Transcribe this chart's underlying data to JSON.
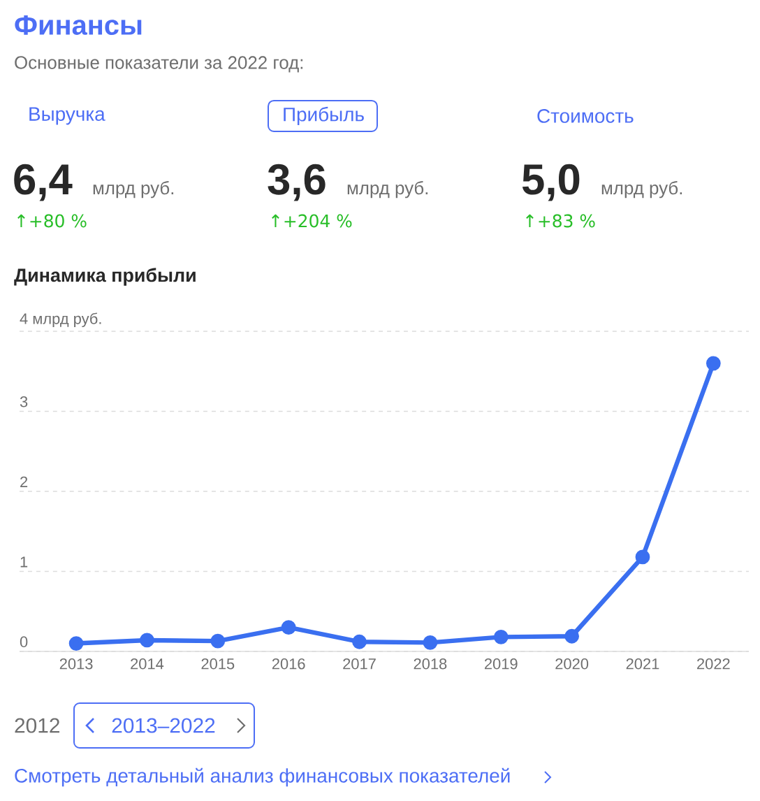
{
  "chart_data": {
    "type": "line",
    "title": "Финансы",
    "subtitle": "Основные показатели за 2022 год:",
    "categories": [
      "2013",
      "2014",
      "2015",
      "2016",
      "2017",
      "2018",
      "2019",
      "2020",
      "2021",
      "2022"
    ],
    "series": [
      {
        "color": "#3a6ff0",
        "values": [
          0.1,
          0.14,
          0.13,
          0.3,
          0.12,
          0.11,
          0.18,
          0.19,
          1.18,
          3.6
        ]
      }
    ],
    "ylim": [
      0,
      4
    ],
    "yticks": [
      0,
      1,
      2,
      3,
      {
        "value": 4,
        "label": "4 млрд руб."
      }
    ],
    "grid": "y",
    "marker": "circle",
    "line_style": "solid",
    "annotations": [
      "Выручка",
      "Прибыль",
      "Стоимость",
      "6,4",
      "3,6",
      "5,0",
      "млрд руб.",
      "млрд руб.",
      "млрд руб.",
      "↑+80 %",
      "↑+204 %",
      "↑+83 %",
      "Динамика прибыли",
      "2012",
      "2013–2022",
      "Смотреть детальный анализ финансовых показателей"
    ]
  }
}
